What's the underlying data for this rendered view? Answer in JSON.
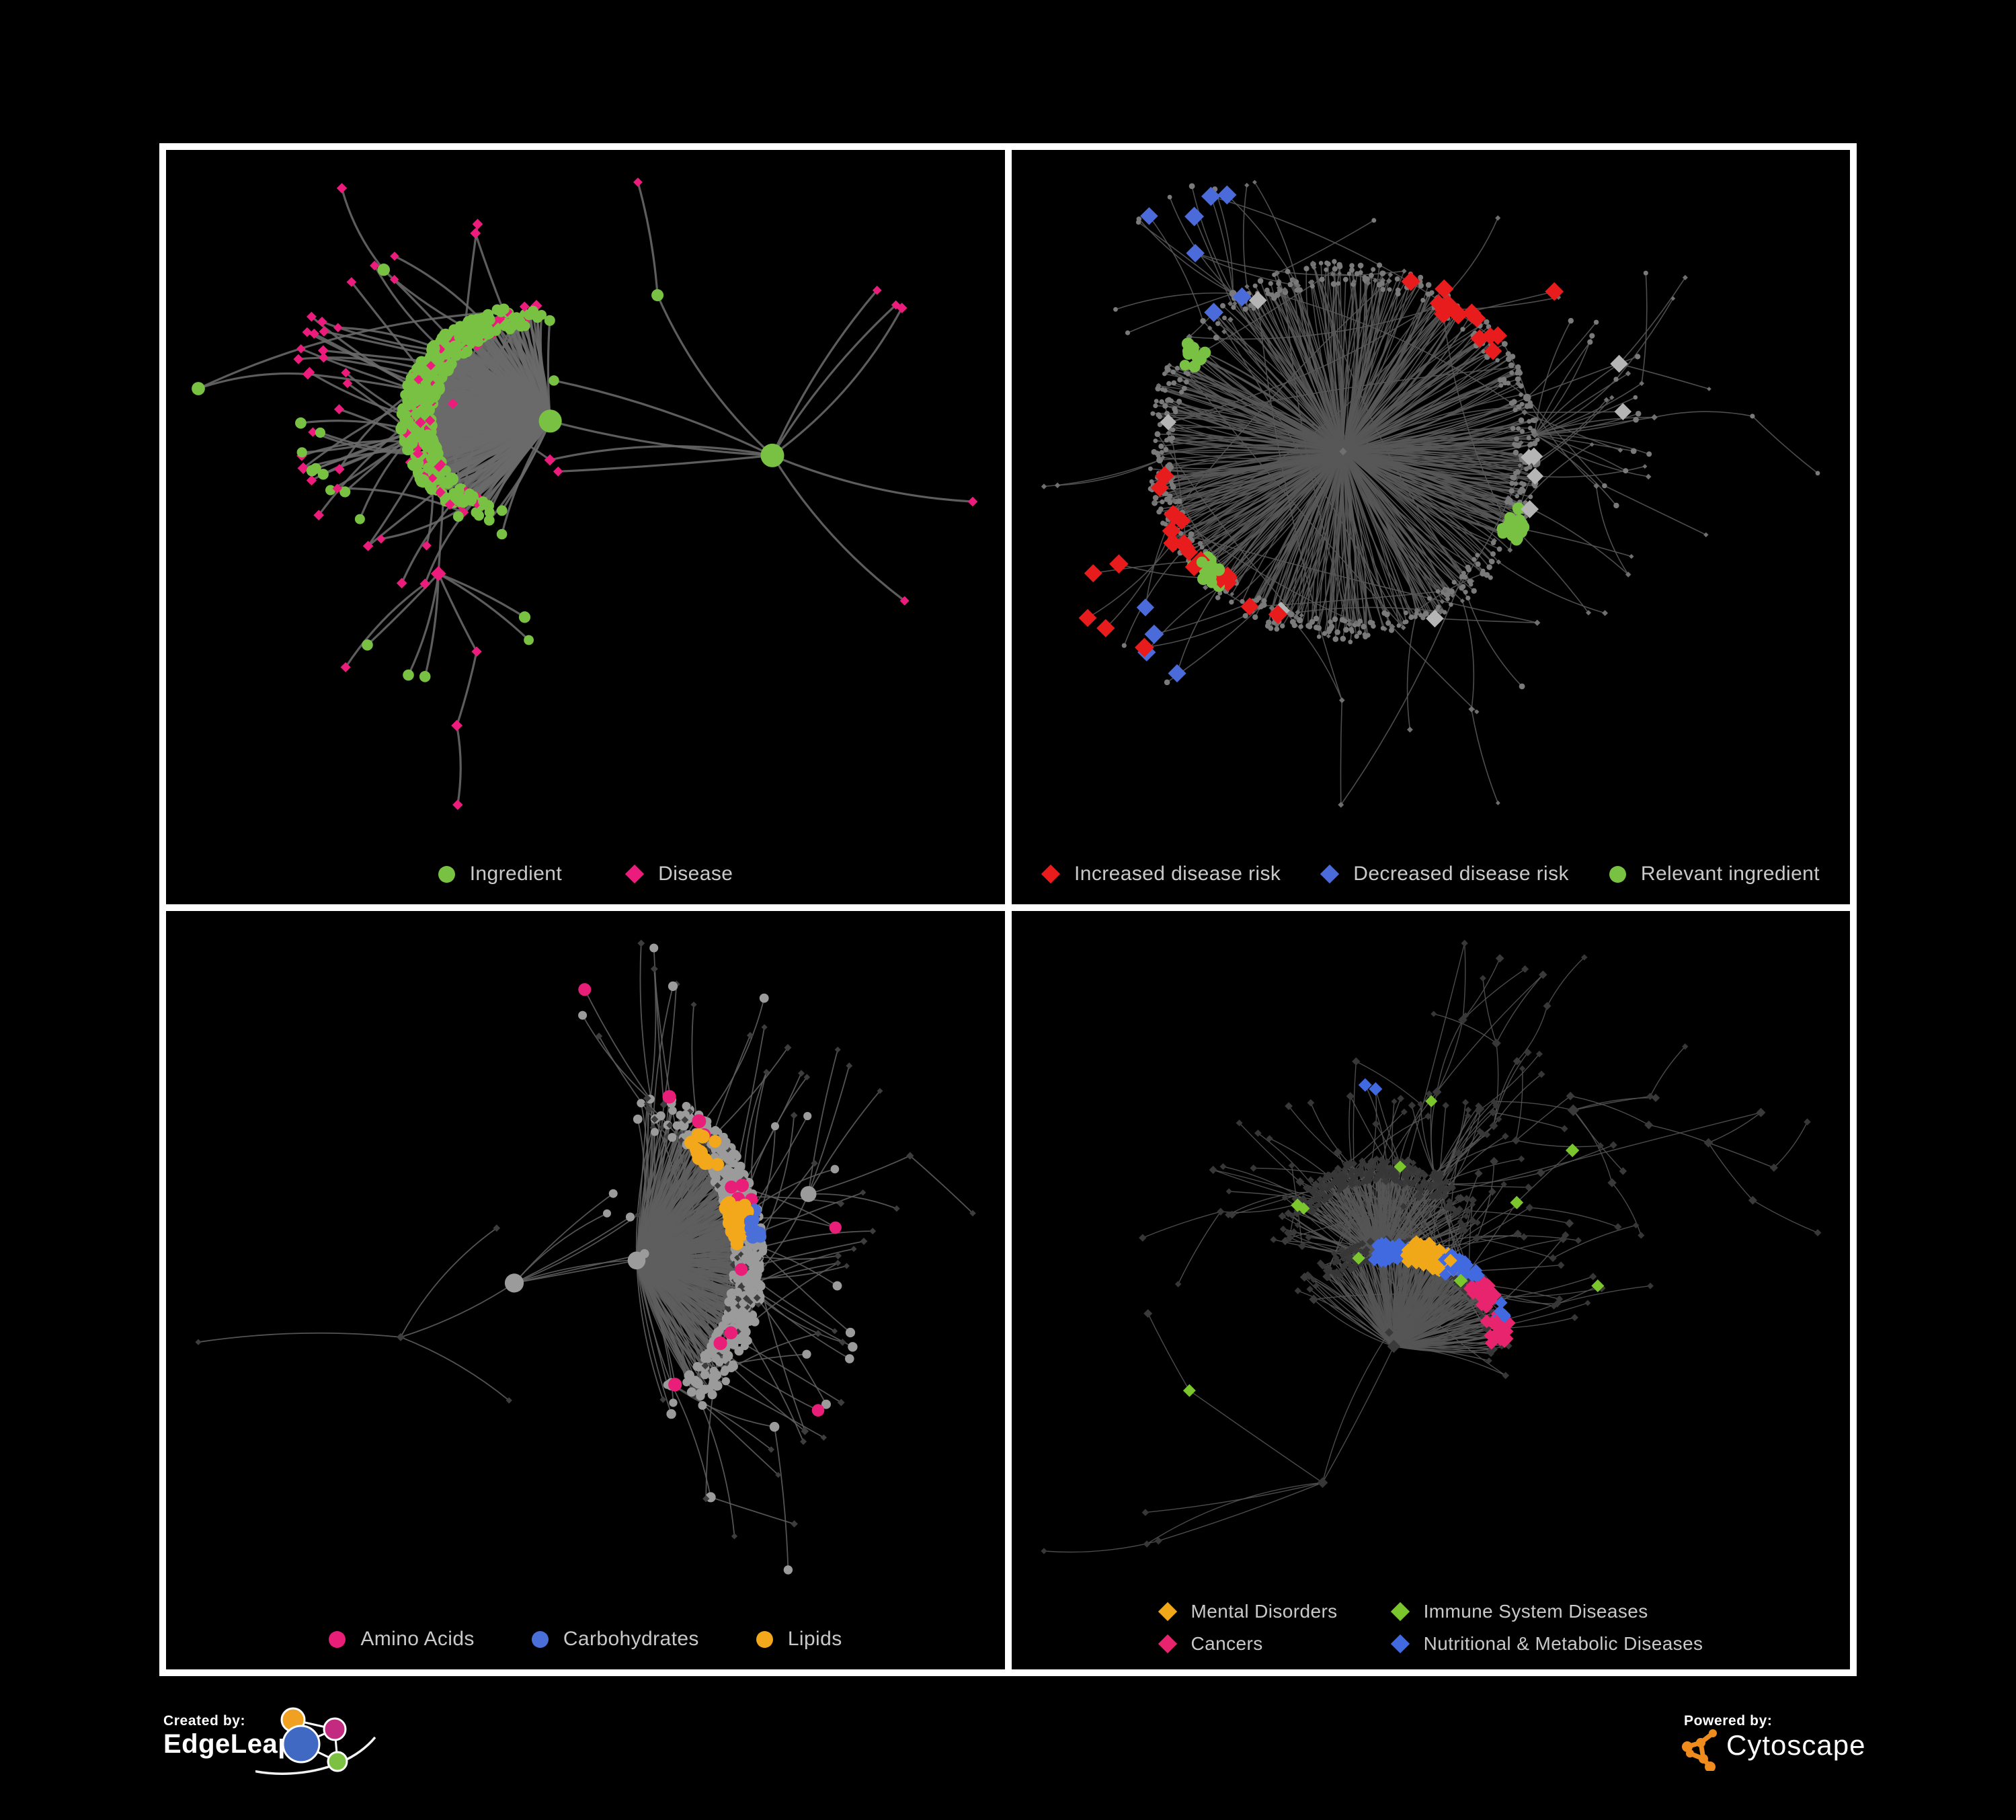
{
  "page": {
    "background": "#000000",
    "panel_border": "#ffffff",
    "legend_text_color": "#c9c9c9"
  },
  "panels": [
    {
      "name": "ingredient-disease-network",
      "legend": [
        {
          "label": "Ingredient",
          "shape": "circle",
          "color": "#79c143"
        },
        {
          "label": "Disease",
          "shape": "diamond",
          "color": "#ec1c7d"
        }
      ],
      "network": {
        "seed": 11,
        "nodes": 520,
        "edge": {
          "color": "#6a6a6a",
          "width": 3.2
        },
        "ingredient_style": {
          "shape": "circle",
          "color": "#79c143",
          "size": [
            6,
            17
          ]
        },
        "disease_style": {
          "shape": "diamond",
          "color": "#ec1c7d",
          "size": [
            6,
            12
          ]
        },
        "highlights": []
      }
    },
    {
      "name": "disease-risk-network",
      "legend": [
        {
          "label": "Increased disease risk",
          "shape": "diamond",
          "color": "#e81c1c"
        },
        {
          "label": "Decreased disease risk",
          "shape": "diamond",
          "color": "#4a6bd9"
        },
        {
          "label": "Relevant ingredient",
          "shape": "circle",
          "color": "#79c143"
        }
      ],
      "network": {
        "seed": 23,
        "nodes": 700,
        "edge": {
          "color": "#585858",
          "width": 1.6
        },
        "ingredient_style": {
          "shape": "circle",
          "color": "#7a7a7a",
          "size": [
            3,
            5
          ]
        },
        "disease_style": {
          "shape": "diamond",
          "color": "#6f6f6f",
          "size": [
            3,
            5
          ]
        },
        "highlights": [
          {
            "name": "increased-disease-risk",
            "shape": "diamond",
            "color": "#e81c1c",
            "count": 38,
            "size": 13,
            "clusters": 3,
            "target": "disease"
          },
          {
            "name": "decreased-disease-risk",
            "shape": "diamond",
            "color": "#4a6bd9",
            "count": 11,
            "size": 13,
            "clusters": 2,
            "target": "disease"
          },
          {
            "name": "no-effect",
            "shape": "diamond",
            "color": "#b5b5b5",
            "count": 10,
            "size": 12,
            "clusters": 0,
            "target": "disease"
          },
          {
            "name": "relevant-ingredient",
            "shape": "circle",
            "color": "#79c143",
            "count": 46,
            "size": 8,
            "clusters": 3,
            "target": "ingredient"
          }
        ]
      }
    },
    {
      "name": "nutrient-class-network",
      "legend": [
        {
          "label": "Amino Acids",
          "shape": "circle",
          "color": "#e81e78"
        },
        {
          "label": "Carbohydrates",
          "shape": "circle",
          "color": "#4a6fd8"
        },
        {
          "label": "Lipids",
          "shape": "circle",
          "color": "#f3a81b"
        }
      ],
      "network": {
        "seed": 37,
        "nodes": 650,
        "edge": {
          "color": "#5e5e5e",
          "width": 1.8
        },
        "ingredient_style": {
          "shape": "circle",
          "color": "#9b9b9b",
          "size": [
            5,
            13
          ]
        },
        "disease_style": {
          "shape": "diamond",
          "color": "#3d3d3d",
          "size": [
            4,
            7
          ]
        },
        "highlights": [
          {
            "name": "lipids",
            "shape": "circle",
            "color": "#f3a81b",
            "count": 62,
            "size": 9,
            "clusters": 2,
            "target": "ingredient"
          },
          {
            "name": "amino-acids",
            "shape": "circle",
            "color": "#e81e78",
            "count": 16,
            "size": 9,
            "clusters": 0,
            "target": "ingredient"
          },
          {
            "name": "carbohydrates",
            "shape": "circle",
            "color": "#4a6fd8",
            "count": 14,
            "size": 9,
            "clusters": 1,
            "target": "ingredient"
          }
        ]
      }
    },
    {
      "name": "disease-class-network",
      "legend": [
        {
          "label": "Mental Disorders",
          "shape": "diamond",
          "color": "#f0a818"
        },
        {
          "label": "Immune System Diseases",
          "shape": "diamond",
          "color": "#7bc62c"
        },
        {
          "label": "Cancers",
          "shape": "diamond",
          "color": "#e8246e"
        },
        {
          "label": "Nutritional & Metabolic Diseases",
          "shape": "diamond",
          "color": "#4169e0"
        }
      ],
      "network": {
        "seed": 53,
        "nodes": 800,
        "edge": {
          "color": "#555555",
          "width": 1.4
        },
        "ingredient_style": {
          "shape": "diamond",
          "color": "#3a3a3a",
          "size": [
            5,
            9
          ]
        },
        "disease_style": {
          "shape": "diamond",
          "color": "#373737",
          "size": [
            4,
            8
          ]
        },
        "highlights": [
          {
            "name": "mental-disorders",
            "shape": "diamond",
            "color": "#f0a818",
            "count": 85,
            "size": 9,
            "clusters": 1,
            "target": "any"
          },
          {
            "name": "cancers",
            "shape": "diamond",
            "color": "#e8246e",
            "count": 55,
            "size": 9,
            "clusters": 2,
            "target": "any"
          },
          {
            "name": "nutritional-metabolic-diseases",
            "shape": "diamond",
            "color": "#4169e0",
            "count": 80,
            "size": 9,
            "clusters": 4,
            "target": "any"
          },
          {
            "name": "immune-system-diseases",
            "shape": "diamond",
            "color": "#7bc62c",
            "count": 10,
            "size": 9,
            "clusters": 0,
            "target": "any"
          }
        ]
      }
    }
  ],
  "footer": {
    "created_by": {
      "label": "Created by:",
      "brand": "EdgeLeap",
      "logo_colors": {
        "orange": "#f0a122",
        "magenta": "#c22b80",
        "blue": "#4069c4",
        "green": "#7dc143"
      }
    },
    "powered_by": {
      "label": "Powered by:",
      "brand": "Cytoscape",
      "accent": "#f08c1e"
    }
  }
}
